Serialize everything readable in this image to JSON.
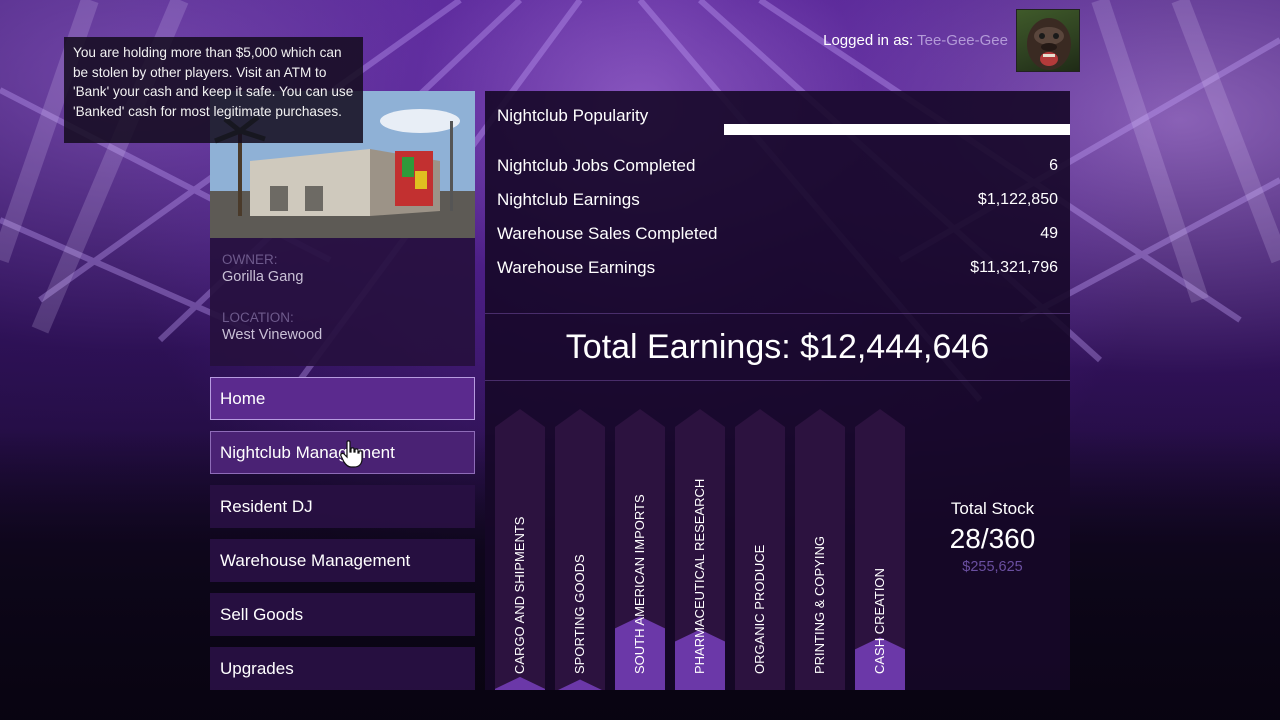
{
  "tooltip": {
    "text": "You are holding more than $5,000 which can be stolen by other players. Visit an ATM to 'Bank' your cash and keep it safe. You can use 'Banked' cash for most legitimate purchases."
  },
  "header": {
    "logged_in_label": "Logged in as:",
    "username": "Tee-Gee-Gee",
    "avatar_icon": "gorilla-mask-avatar"
  },
  "property": {
    "owner_label": "OWNER:",
    "owner": "Gorilla Gang",
    "location_label": "LOCATION:",
    "location": "West Vinewood"
  },
  "menu": {
    "items": [
      {
        "label": "Home",
        "state": "selected"
      },
      {
        "label": "Nightclub Management",
        "state": "hover"
      },
      {
        "label": "Resident DJ",
        "state": "normal"
      },
      {
        "label": "Warehouse Management",
        "state": "normal"
      },
      {
        "label": "Sell Goods",
        "state": "normal"
      },
      {
        "label": "Upgrades",
        "state": "normal"
      }
    ]
  },
  "stats": {
    "popularity_label": "Nightclub Popularity",
    "popularity_fraction": 1.0,
    "rows": [
      {
        "label": "Nightclub Jobs Completed",
        "value": "6"
      },
      {
        "label": "Nightclub Earnings",
        "value": "$1,122,850"
      },
      {
        "label": "Warehouse Sales Completed",
        "value": "49"
      },
      {
        "label": "Warehouse Earnings",
        "value": "$11,321,796"
      }
    ],
    "total_earnings": "Total Earnings: $12,444,646"
  },
  "stock": {
    "categories": [
      {
        "label": "CARGO AND SHIPMENTS",
        "fill_fraction": 0.05
      },
      {
        "label": "SPORTING GOODS",
        "fill_fraction": 0.04
      },
      {
        "label": "SOUTH AMERICAN IMPORTS",
        "fill_fraction": 0.28
      },
      {
        "label": "PHARMACEUTICAL RESEARCH",
        "fill_fraction": 0.23
      },
      {
        "label": "ORGANIC PRODUCE",
        "fill_fraction": 0.0
      },
      {
        "label": "PRINTING & COPYING",
        "fill_fraction": 0.0
      },
      {
        "label": "CASH CREATION",
        "fill_fraction": 0.2
      }
    ],
    "total_label": "Total Stock",
    "total_value": "28/360",
    "total_worth": "$255,625"
  },
  "colors": {
    "accent": "#5b2a8e",
    "panel": "#26103e",
    "stock_fill": "#6b38a8",
    "stock_empty": "#2c123f"
  }
}
